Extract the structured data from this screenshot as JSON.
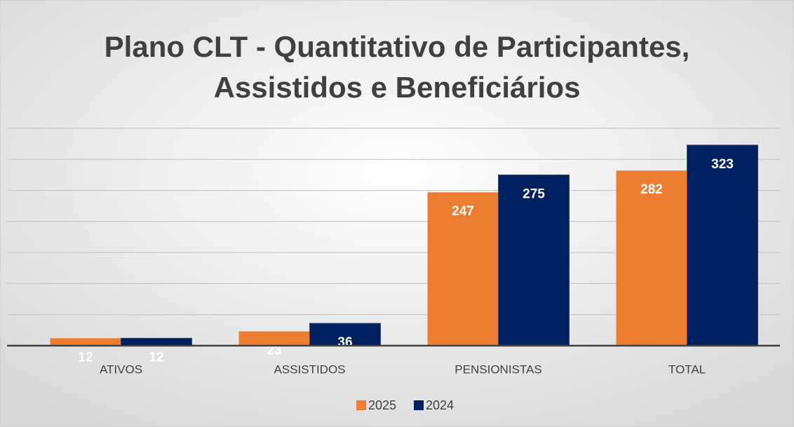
{
  "chart_data": {
    "type": "bar",
    "title": [
      "Plano CLT - Quantitativo de Participantes,",
      "Assistidos e Beneficiários"
    ],
    "categories": [
      "ATIVOS",
      "ASSISTIDOS",
      "PENSIONISTAS",
      "TOTAL"
    ],
    "series": [
      {
        "name": "2025",
        "color": "#ed7d31",
        "values": [
          12,
          23,
          247,
          282
        ]
      },
      {
        "name": "2024",
        "color": "#002060",
        "values": [
          12,
          36,
          275,
          323
        ]
      }
    ],
    "ylim": [
      0,
      350
    ],
    "yticks": [
      0,
      50,
      100,
      150,
      200,
      250,
      300,
      350
    ],
    "grid": true,
    "legend": "bottom"
  }
}
